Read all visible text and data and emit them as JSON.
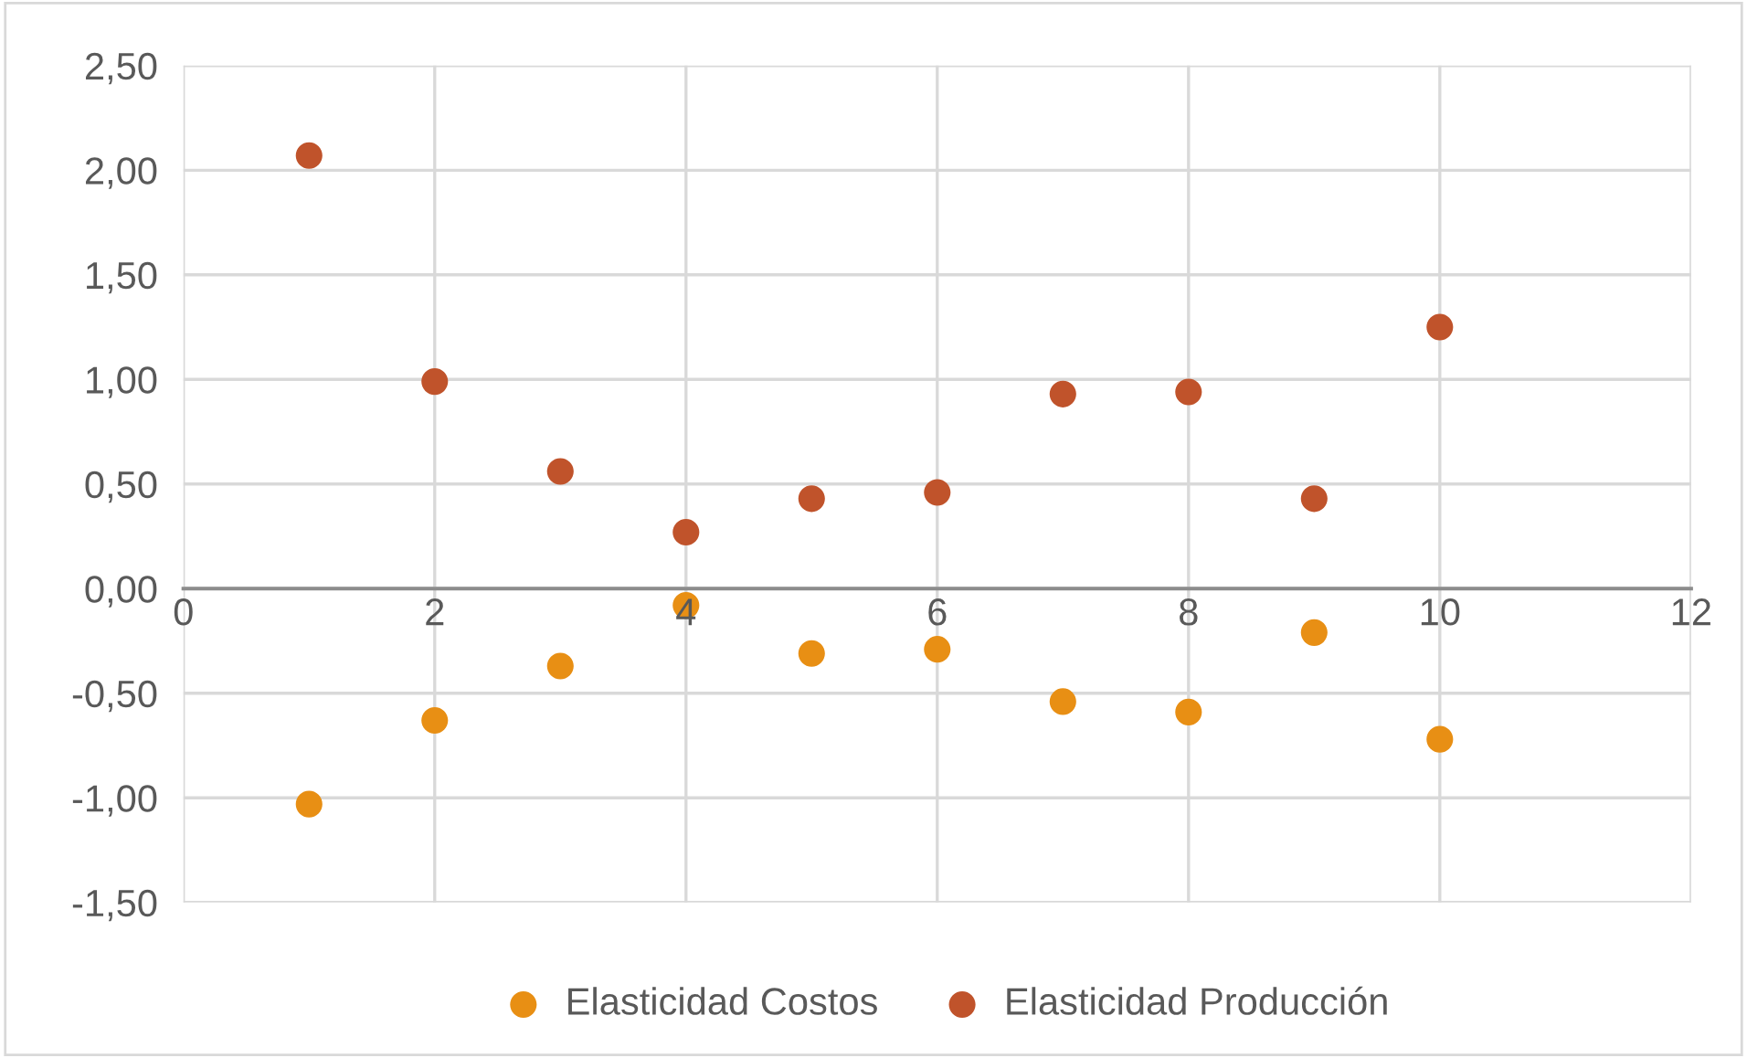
{
  "chart_data": {
    "type": "scatter",
    "x": [
      1,
      2,
      3,
      4,
      5,
      6,
      7,
      8,
      9,
      10
    ],
    "series": [
      {
        "name": "Elasticidad Costos",
        "color": "#e88f14",
        "values": [
          -1.03,
          -0.63,
          -0.37,
          -0.08,
          -0.31,
          -0.29,
          -0.54,
          -0.59,
          -0.21,
          -0.72
        ]
      },
      {
        "name": "Elasticidad Producción",
        "color": "#c0532b",
        "values": [
          2.07,
          0.99,
          0.56,
          0.27,
          0.43,
          0.46,
          0.93,
          0.94,
          0.43,
          1.25
        ]
      }
    ],
    "xlim": [
      0,
      12
    ],
    "xticks": [
      0,
      2,
      4,
      6,
      8,
      10,
      12
    ],
    "ylim": [
      -1.5,
      2.5
    ],
    "yticks": [
      {
        "value": -1.5,
        "label": "-1,50"
      },
      {
        "value": -1.0,
        "label": "-1,00"
      },
      {
        "value": -0.5,
        "label": "-0,50"
      },
      {
        "value": 0,
        "label": "0,00"
      },
      {
        "value": 0.5,
        "label": "0,50"
      },
      {
        "value": 1.0,
        "label": "1,00"
      },
      {
        "value": 1.5,
        "label": "1,50"
      },
      {
        "value": 2.0,
        "label": "2,00"
      },
      {
        "value": 2.5,
        "label": "2,50"
      }
    ],
    "grid": true,
    "legend": "bottom",
    "marker": "circle"
  }
}
